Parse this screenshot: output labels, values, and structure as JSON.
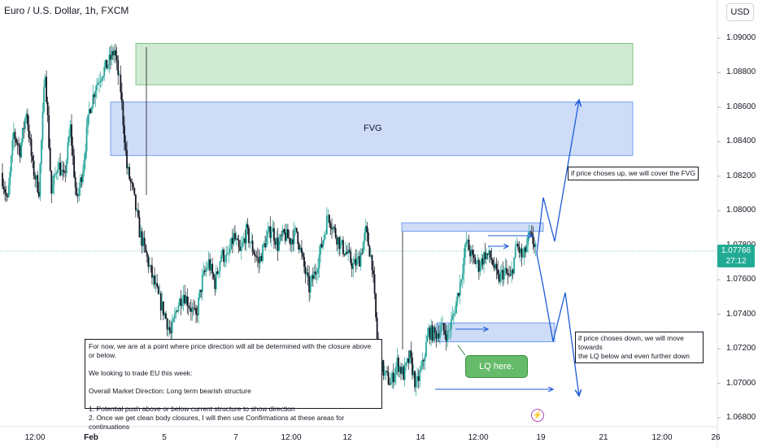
{
  "header": {
    "symbol_title": "Euro / U.S. Dollar, 1h, FXCM",
    "currency_button": "USD"
  },
  "price_tag": {
    "price": "1.07766",
    "countdown": "27:12"
  },
  "annotations": {
    "fvg_label": "FVG",
    "lq_label": "LQ here.",
    "up_note": "if price choses up, we will cover the FVG",
    "down_note": "if price choses down, we will move towards\nthe LQ below and even further down",
    "main_note": "For now, we are at a point where price direction will all be determined with the closure above or below.\n\nWe looking to trade EU this week:\n\nOverall Market Direction: Long term bearish structure\n\n1. Potential push above or below current structure to show direction\n2. Once we get clean body closures, I will then use Confirmations at these areas for continuations"
  },
  "event_icon": "lightning-icon",
  "colors": {
    "bull": "#26a69a",
    "bear": "#131722",
    "fvg_fill": "#c5d6f7",
    "supply_fill": "#c8e6c9",
    "arrow": "#1e5bd6",
    "price_line": "#22ab94"
  },
  "chart_data": {
    "type": "candlestick",
    "title": "Euro / U.S. Dollar, 1h, FXCM",
    "y_axis": {
      "ylim": [
        1.068,
        1.091
      ],
      "ticks": [
        "1.09000",
        "1.08800",
        "1.08600",
        "1.08400",
        "1.08200",
        "1.08000",
        "1.07800",
        "1.07600",
        "1.07400",
        "1.07200",
        "1.07000",
        "1.06800"
      ]
    },
    "x_axis": {
      "ticks": [
        {
          "label": "12:00",
          "bold": false
        },
        {
          "label": "Feb",
          "bold": true
        },
        {
          "label": "5",
          "bold": false
        },
        {
          "label": "7",
          "bold": false
        },
        {
          "label": "12:00",
          "bold": false
        },
        {
          "label": "12",
          "bold": false
        },
        {
          "label": "14",
          "bold": false
        },
        {
          "label": "12:00",
          "bold": false
        },
        {
          "label": "19",
          "bold": false
        },
        {
          "label": "21",
          "bold": false
        },
        {
          "label": "12:00",
          "bold": false
        },
        {
          "label": "26",
          "bold": false
        }
      ]
    },
    "zones": [
      {
        "name": "supply",
        "y_range": [
          1.0873,
          1.0897
        ]
      },
      {
        "name": "FVG",
        "y_range": [
          1.0832,
          1.0863
        ]
      },
      {
        "name": "upper-liquidity",
        "y_range": [
          1.0788,
          1.0793
        ]
      },
      {
        "name": "lower-liquidity",
        "y_range": [
          1.0724,
          1.0735
        ]
      }
    ],
    "last_price": 1.07766,
    "path": [
      1.0822,
      1.0805,
      1.0845,
      1.0835,
      1.0858,
      1.0825,
      1.0812,
      1.0882,
      1.081,
      1.0828,
      1.0818,
      1.0848,
      1.0805,
      1.0825,
      1.0858,
      1.0872,
      1.088,
      1.0885,
      1.0893,
      1.087,
      1.0825,
      1.081,
      1.0788,
      1.0775,
      1.0762,
      1.075,
      1.074,
      1.0728,
      1.0745,
      1.0752,
      1.0745,
      1.0738,
      1.076,
      1.077,
      1.0758,
      1.0775,
      1.0772,
      1.0785,
      1.0775,
      1.0788,
      1.0778,
      1.077,
      1.0782,
      1.079,
      1.078,
      1.0786,
      1.0783,
      1.0788,
      1.077,
      1.0755,
      1.0765,
      1.078,
      1.0798,
      1.0788,
      1.078,
      1.0775,
      1.0768,
      1.0772,
      1.0788,
      1.077,
      1.0715,
      1.0705,
      1.07,
      1.0712,
      1.0705,
      1.0715,
      1.0698,
      1.071,
      1.073,
      1.0728,
      1.0732,
      1.0728,
      1.074,
      1.0758,
      1.0782,
      1.0772,
      1.0768,
      1.0775,
      1.0772,
      1.076,
      1.0765,
      1.076,
      1.078,
      1.0772,
      1.0785,
      1.078
    ]
  }
}
